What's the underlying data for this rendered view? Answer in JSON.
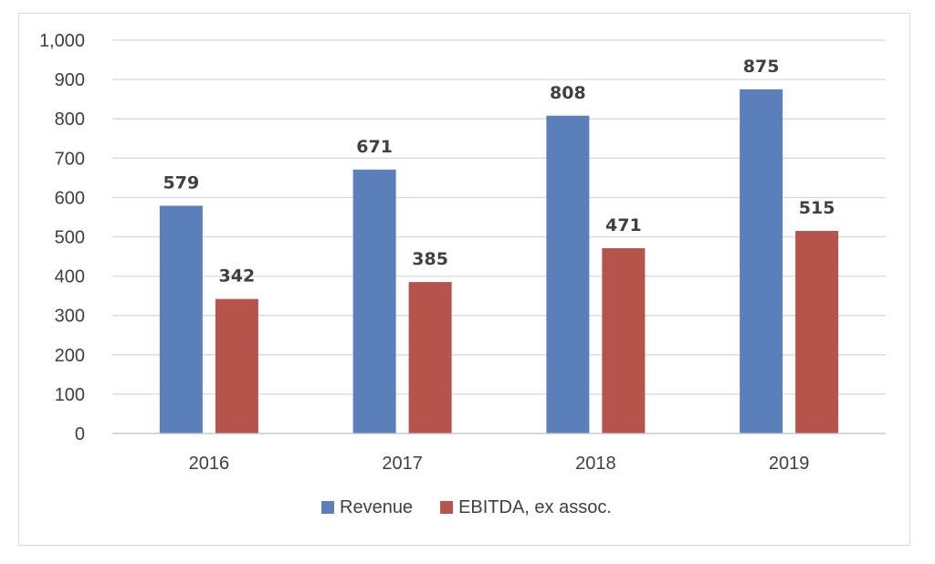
{
  "chart_data": {
    "type": "bar",
    "categories": [
      "2016",
      "2017",
      "2018",
      "2019"
    ],
    "series": [
      {
        "name": "Revenue",
        "values": [
          579,
          671,
          808,
          875
        ],
        "color": "#5b7fba"
      },
      {
        "name": "EBITDA, ex assoc.",
        "values": [
          342,
          385,
          471,
          515
        ],
        "color": "#b5534d"
      }
    ],
    "title": "",
    "xlabel": "",
    "ylabel": "",
    "ylim": [
      0,
      1000
    ],
    "yticks": [
      0,
      100,
      200,
      300,
      400,
      500,
      600,
      700,
      800,
      900,
      1000
    ],
    "ytick_labels": [
      "0",
      "100",
      "200",
      "300",
      "400",
      "500",
      "600",
      "700",
      "800",
      "900",
      "1,000"
    ],
    "grid": true,
    "legend_position": "bottom",
    "data_labels": true
  }
}
